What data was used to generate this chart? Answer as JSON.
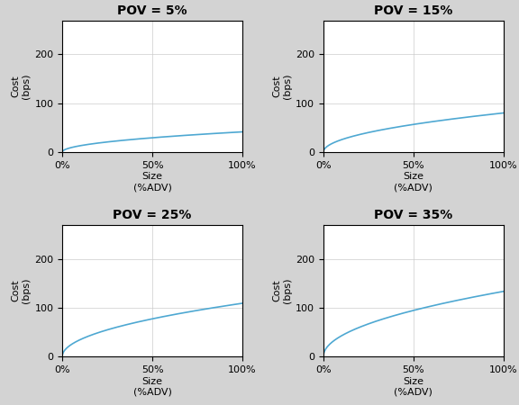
{
  "povs": [
    5,
    15,
    25,
    35
  ],
  "titles": [
    "POV = 5%",
    "POV = 15%",
    "POV = 25%",
    "POV = 35%"
  ],
  "x_ticks": [
    0,
    0.5,
    1.0
  ],
  "x_tick_labels": [
    "0%",
    "50%",
    "100%"
  ],
  "y_ticks": [
    0,
    100,
    200
  ],
  "ylim": [
    0,
    270
  ],
  "xlim": [
    0,
    1.0
  ],
  "line_color": "#4EA8D2",
  "bg_color": "#D3D3D3",
  "axes_bg": "#FFFFFF",
  "xlabel_line1": "Size",
  "xlabel_line2": "(%ADV)",
  "ylabel_line1": "Cost",
  "ylabel_line2": "(bps)",
  "sigma": 1.0,
  "eta": 0.6,
  "scale_factor": 2.5
}
